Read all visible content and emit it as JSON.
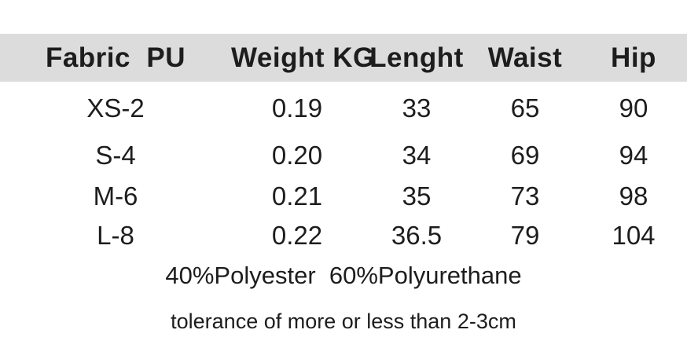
{
  "colors": {
    "background": "#ffffff",
    "header_row_bg": "#dcdcdc",
    "text": "#1d1d1d"
  },
  "table": {
    "columns": [
      "Fabric  PU",
      "Weight KG",
      "Lenght",
      "Waist",
      "Hip"
    ],
    "rows": [
      {
        "cells": [
          "XS-2",
          "0.19",
          "33",
          "65",
          "90"
        ]
      },
      {
        "cells": [
          "S-4",
          "0.20",
          "34",
          "69",
          "94"
        ]
      },
      {
        "cells": [
          "M-6",
          "0.21",
          "35",
          "73",
          "98"
        ]
      },
      {
        "cells": [
          "L-8",
          "0.22",
          "36.5",
          "79",
          "104"
        ]
      }
    ]
  },
  "notes": {
    "composition": "40%Polyester  60%Polyurethane",
    "tolerance": "tolerance of more or less than 2-3cm"
  }
}
